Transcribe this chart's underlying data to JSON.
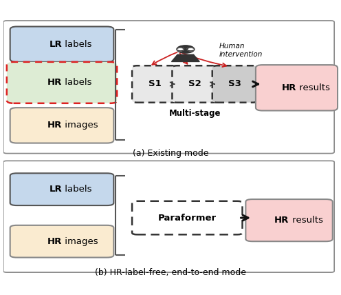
{
  "bg_color": "#ffffff",
  "panel_border_color": "#888888",
  "lr_labels_bg": "#c5d8ec",
  "lr_labels_border": "#555555",
  "lr_labels_text_bold": "LR",
  "lr_labels_text_rest": " labels",
  "hr_labels_bg": "#ddecd4",
  "hr_labels_border": "#dd2222",
  "hr_labels_text_bold": "HR",
  "hr_labels_text_rest": " labels",
  "hr_images_bg": "#faebd0",
  "hr_images_border": "#888888",
  "hr_images_text_bold": "HR",
  "hr_images_text_rest": " images",
  "stage_bg_light": "#e8e8e8",
  "stage_bg_dark": "#cccccc",
  "stage_border": "#333333",
  "stages": [
    "S1",
    "S2",
    "S3"
  ],
  "hr_results_bg": "#f9d0d0",
  "hr_results_border": "#888888",
  "hr_results_text_bold": "HR",
  "hr_results_text_rest": " results",
  "multistage_text": "Multi-stage",
  "human_text_italic": "Human\nintervention",
  "paraformer_bg": "#ffffff",
  "paraformer_border": "#333333",
  "paraformer_text": "Paraformer",
  "caption_a": "(a) Existing mode",
  "caption_b": "(b) HR-label-free, end-to-end mode",
  "arrow_color": "#111111",
  "red_arrow_color": "#cc2222",
  "brace_color": "#555555"
}
